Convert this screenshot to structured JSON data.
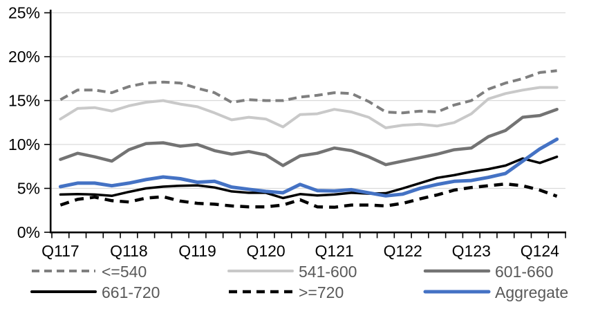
{
  "chart_data": {
    "type": "line",
    "title": "",
    "categories": [
      "2017Q1",
      "2017Q2",
      "2017Q3",
      "2017Q4",
      "2018Q1",
      "2018Q2",
      "2018Q3",
      "2018Q4",
      "2019Q1",
      "2019Q2",
      "2019Q3",
      "2019Q4",
      "2020Q1",
      "2020Q2",
      "2020Q3",
      "2020Q4",
      "2021Q1",
      "2021Q2",
      "2021Q3",
      "2021Q4",
      "2022Q1",
      "2022Q2",
      "2022Q3",
      "2022Q4",
      "2023Q1",
      "2023Q2",
      "2023Q3",
      "2023Q4",
      "2024Q1",
      "2024Q2"
    ],
    "x_tick_labels": [
      "Q117",
      "Q118",
      "Q119",
      "Q120",
      "Q121",
      "Q122",
      "Q123",
      "Q124"
    ],
    "xlabel": "",
    "ylabel": "",
    "ylim": [
      0,
      25
    ],
    "y_tick_labels": [
      "0%",
      "5%",
      "10%",
      "15%",
      "20%",
      "25%"
    ],
    "grid": "horizontal",
    "legend_position": "bottom-two-rows",
    "series": [
      {
        "name": "<=540",
        "color": "#7F7F7F",
        "style": "dashed",
        "width": 4,
        "values": [
          15.1,
          16.2,
          16.2,
          15.9,
          16.6,
          17.0,
          17.1,
          17.0,
          16.4,
          15.9,
          14.8,
          15.1,
          15.0,
          15.0,
          15.4,
          15.6,
          15.9,
          15.8,
          14.9,
          13.7,
          13.6,
          13.8,
          13.7,
          14.5,
          15.0,
          16.3,
          17.0,
          17.5,
          18.2,
          18.4
        ]
      },
      {
        "name": "541-600",
        "color": "#C9C9C9",
        "style": "solid",
        "width": 4,
        "values": [
          12.9,
          14.1,
          14.2,
          13.8,
          14.4,
          14.8,
          15.0,
          14.6,
          14.3,
          13.6,
          12.8,
          13.1,
          12.9,
          12.0,
          13.4,
          13.5,
          14.0,
          13.7,
          13.1,
          11.9,
          12.2,
          12.3,
          12.1,
          12.5,
          13.5,
          15.2,
          15.8,
          16.2,
          16.5,
          16.5
        ]
      },
      {
        "name": "601-660",
        "color": "#737373",
        "style": "solid",
        "width": 4.5,
        "values": [
          8.3,
          9.0,
          8.6,
          8.1,
          9.4,
          10.1,
          10.2,
          9.8,
          10.0,
          9.3,
          8.9,
          9.2,
          8.8,
          7.6,
          8.7,
          9.0,
          9.6,
          9.3,
          8.6,
          7.7,
          8.1,
          8.5,
          8.9,
          9.4,
          9.6,
          10.9,
          11.6,
          13.1,
          13.3,
          14.0
        ]
      },
      {
        "name": "661-720",
        "color": "#000000",
        "style": "solid",
        "width": 3.5,
        "values": [
          4.3,
          4.35,
          4.3,
          4.15,
          4.6,
          5.0,
          5.2,
          5.3,
          5.35,
          5.1,
          4.65,
          4.5,
          4.5,
          3.9,
          4.35,
          4.2,
          4.3,
          4.5,
          4.4,
          4.45,
          5.0,
          5.6,
          6.2,
          6.5,
          6.9,
          7.2,
          7.6,
          8.4,
          7.9,
          8.6
        ]
      },
      {
        "name": ">=720",
        "color": "#000000",
        "style": "dashed",
        "width": 4.5,
        "values": [
          3.1,
          3.75,
          4.0,
          3.6,
          3.45,
          3.9,
          4.05,
          3.55,
          3.3,
          3.2,
          3.0,
          2.9,
          2.9,
          3.1,
          3.7,
          2.9,
          2.85,
          3.1,
          3.1,
          3.0,
          3.3,
          3.8,
          4.25,
          4.8,
          5.1,
          5.3,
          5.5,
          5.3,
          4.8,
          4.1
        ]
      },
      {
        "name": "Aggregate",
        "color": "#4472C4",
        "style": "solid",
        "width": 5,
        "values": [
          5.2,
          5.6,
          5.6,
          5.3,
          5.6,
          6.0,
          6.3,
          6.1,
          5.7,
          5.8,
          5.15,
          4.9,
          4.65,
          4.5,
          5.45,
          4.75,
          4.7,
          4.85,
          4.5,
          4.15,
          4.35,
          5.0,
          5.45,
          5.8,
          5.9,
          6.25,
          6.7,
          8.1,
          9.5,
          10.6
        ]
      }
    ],
    "colors": {
      "gridline": "#D9D9D9",
      "axis": "#000000",
      "axis_text": "#000000",
      "legend_text": "#595959",
      "accent_blue": "#4472C4"
    }
  }
}
